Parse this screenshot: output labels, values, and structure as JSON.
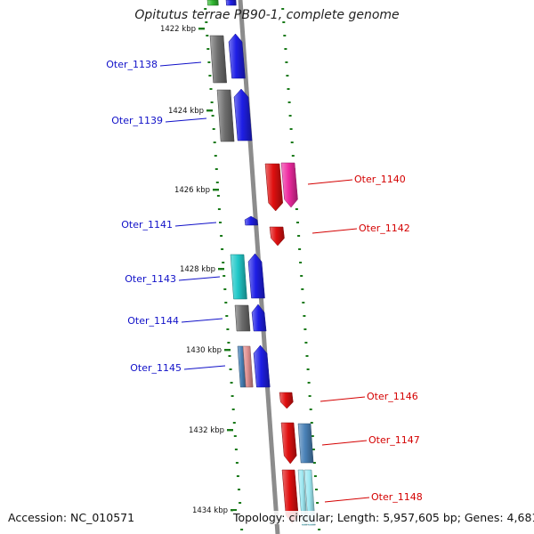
{
  "title": "Opitutus terrae PB90-1, complete genome",
  "accession_text": "Accession: NC_010571",
  "topology_text": "Topology: circular; Length: 5,957,605 bp; Genes: 4,681",
  "colors": {
    "forward_label": "#1010c8",
    "reverse_label": "#d40000",
    "tick": "#1a7a1a",
    "backbone": "#8c8c8c",
    "blue": "#1e1ee6",
    "grey": "#6e6e6e",
    "red": "#e01010",
    "pink": "#ee2aa0",
    "cyan": "#20c8c8",
    "steel": "#4a82b8",
    "salmon": "#e09090",
    "green": "#33bb33",
    "light_cyan": "#9ee8f2"
  },
  "kbp_ticks": [
    "1422 kbp",
    "1424 kbp",
    "1426 kbp",
    "1428 kbp",
    "1430 kbp",
    "1432 kbp",
    "1434 kbp"
  ],
  "genes_forward": [
    "Oter_1138",
    "Oter_1139",
    "Oter_1141",
    "Oter_1143",
    "Oter_1144",
    "Oter_1145"
  ],
  "genes_reverse": [
    "Oter_1140",
    "Oter_1142",
    "Oter_1146",
    "Oter_1147",
    "Oter_1148"
  ]
}
